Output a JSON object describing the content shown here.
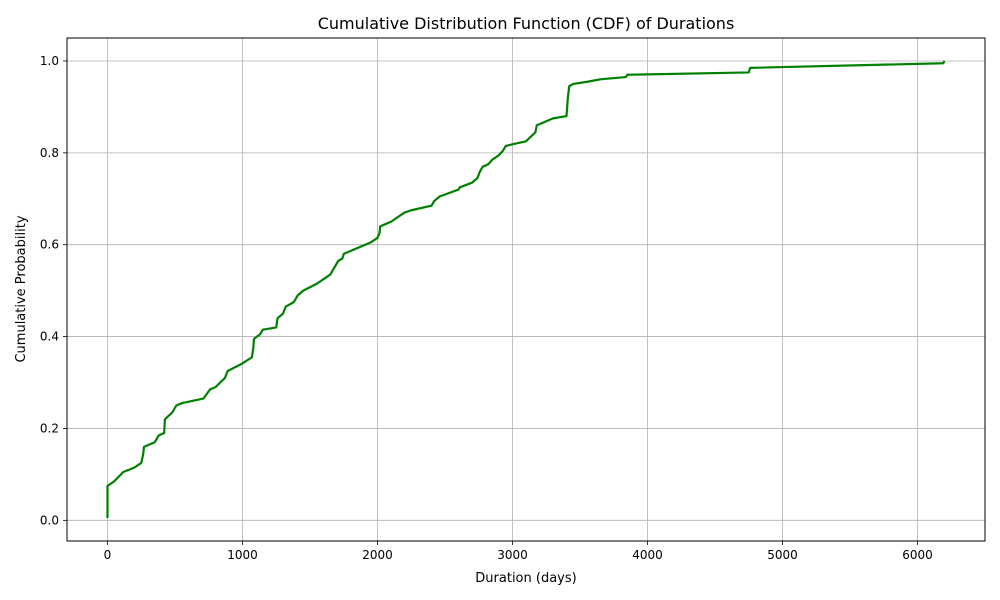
{
  "chart_data": {
    "type": "line",
    "title": "Cumulative Distribution Function (CDF) of Durations",
    "xlabel": "Duration (days)",
    "ylabel": "Cumulative Probability",
    "xlim": [
      -300,
      6500
    ],
    "ylim": [
      -0.045,
      1.05
    ],
    "x_ticks": [
      0,
      1000,
      2000,
      3000,
      4000,
      5000,
      6000
    ],
    "x_tick_labels": [
      "0",
      "1000",
      "2000",
      "3000",
      "4000",
      "5000",
      "6000"
    ],
    "y_ticks": [
      0.0,
      0.2,
      0.4,
      0.6,
      0.8,
      1.0
    ],
    "y_tick_labels": [
      "0.0",
      "0.2",
      "0.4",
      "0.6",
      "0.8",
      "1.0"
    ],
    "grid": true,
    "legend": "none",
    "color": "#008000",
    "series": [
      {
        "x": [
          0,
          0,
          0,
          50,
          100,
          115,
          200,
          250,
          265,
          270,
          350,
          380,
          420,
          425,
          480,
          510,
          550,
          710,
          760,
          800,
          870,
          890,
          990,
          1070,
          1080,
          1085,
          1130,
          1150,
          1250,
          1260,
          1300,
          1320,
          1380,
          1410,
          1450,
          1550,
          1650,
          1700,
          1710,
          1740,
          1750,
          1950,
          2000,
          2015,
          2020,
          2100,
          2200,
          2250,
          2400,
          2420,
          2460,
          2600,
          2610,
          2700,
          2740,
          2760,
          2780,
          2820,
          2850,
          2900,
          2930,
          2950,
          3020,
          3100,
          3170,
          3180,
          3220,
          3300,
          3400,
          3410,
          3420,
          3450,
          3560,
          3650,
          3840,
          3850,
          4750,
          4760,
          6190,
          6200
        ],
        "y": [
          0.005,
          0.055,
          0.075,
          0.085,
          0.1,
          0.105,
          0.115,
          0.125,
          0.145,
          0.16,
          0.17,
          0.185,
          0.19,
          0.22,
          0.235,
          0.25,
          0.255,
          0.265,
          0.285,
          0.29,
          0.31,
          0.325,
          0.34,
          0.355,
          0.375,
          0.395,
          0.405,
          0.415,
          0.42,
          0.44,
          0.45,
          0.465,
          0.475,
          0.49,
          0.5,
          0.515,
          0.535,
          0.56,
          0.565,
          0.57,
          0.58,
          0.605,
          0.615,
          0.625,
          0.64,
          0.65,
          0.67,
          0.675,
          0.685,
          0.695,
          0.705,
          0.72,
          0.725,
          0.735,
          0.745,
          0.76,
          0.77,
          0.775,
          0.785,
          0.795,
          0.805,
          0.815,
          0.82,
          0.825,
          0.845,
          0.86,
          0.865,
          0.875,
          0.88,
          0.92,
          0.945,
          0.95,
          0.955,
          0.96,
          0.965,
          0.97,
          0.975,
          0.985,
          0.995,
          1.0
        ]
      }
    ]
  }
}
